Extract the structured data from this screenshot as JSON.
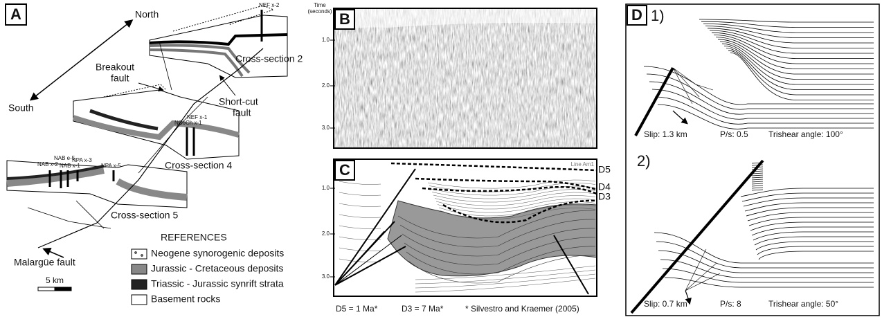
{
  "panel_a": {
    "label": "A",
    "north": "North",
    "south": "South",
    "breakout_fault": [
      "Breakout",
      "fault"
    ],
    "short_cut_fault": [
      "Short-cut",
      "fault"
    ],
    "cross_section_2": "Cross-section 2",
    "cross_section_4": "Cross-section 4",
    "cross_section_5": "Cross-section 5",
    "malargue_fault": "Malargüe fault",
    "wells": [
      "NEF x-2",
      "NEF x-1",
      "NCoCh x-1",
      "NAB x-2",
      "NAB e-5",
      "NAB x-1",
      "NPA x-3",
      "NPA x-5"
    ],
    "scale": "5 km"
  },
  "references": {
    "title": "REFERENCES",
    "items": [
      "Neogene synorogenic deposits",
      "Jurassic - Cretaceous deposits",
      "Triassic - Jurassic synrift strata",
      "Basement rocks"
    ]
  },
  "panel_b": {
    "label": "B",
    "axis_title": [
      "Time",
      "(seconds)"
    ],
    "ticks": [
      "1.0",
      "2.0",
      "3.0"
    ]
  },
  "panel_c": {
    "label": "C",
    "line_name": "Line Am1",
    "horizons": [
      "D5",
      "D4",
      "D3"
    ],
    "ticks": [
      "1.0",
      "2.0",
      "3.0"
    ],
    "caption": [
      "D5 = 1 Ma*",
      "D3 = 7 Ma*",
      "* Silvestro and Kraemer (2005)"
    ]
  },
  "panel_d": {
    "label": "D",
    "models": [
      {
        "label": "1)",
        "slip": "Slip: 1.3 km",
        "ps": "P/s: 0.5",
        "trishear": "Trishear angle: 100°"
      },
      {
        "label": "2)",
        "slip": "Slip: 0.7 km",
        "ps": "P/s: 8",
        "trishear": "Trishear angle: 50°"
      }
    ]
  }
}
